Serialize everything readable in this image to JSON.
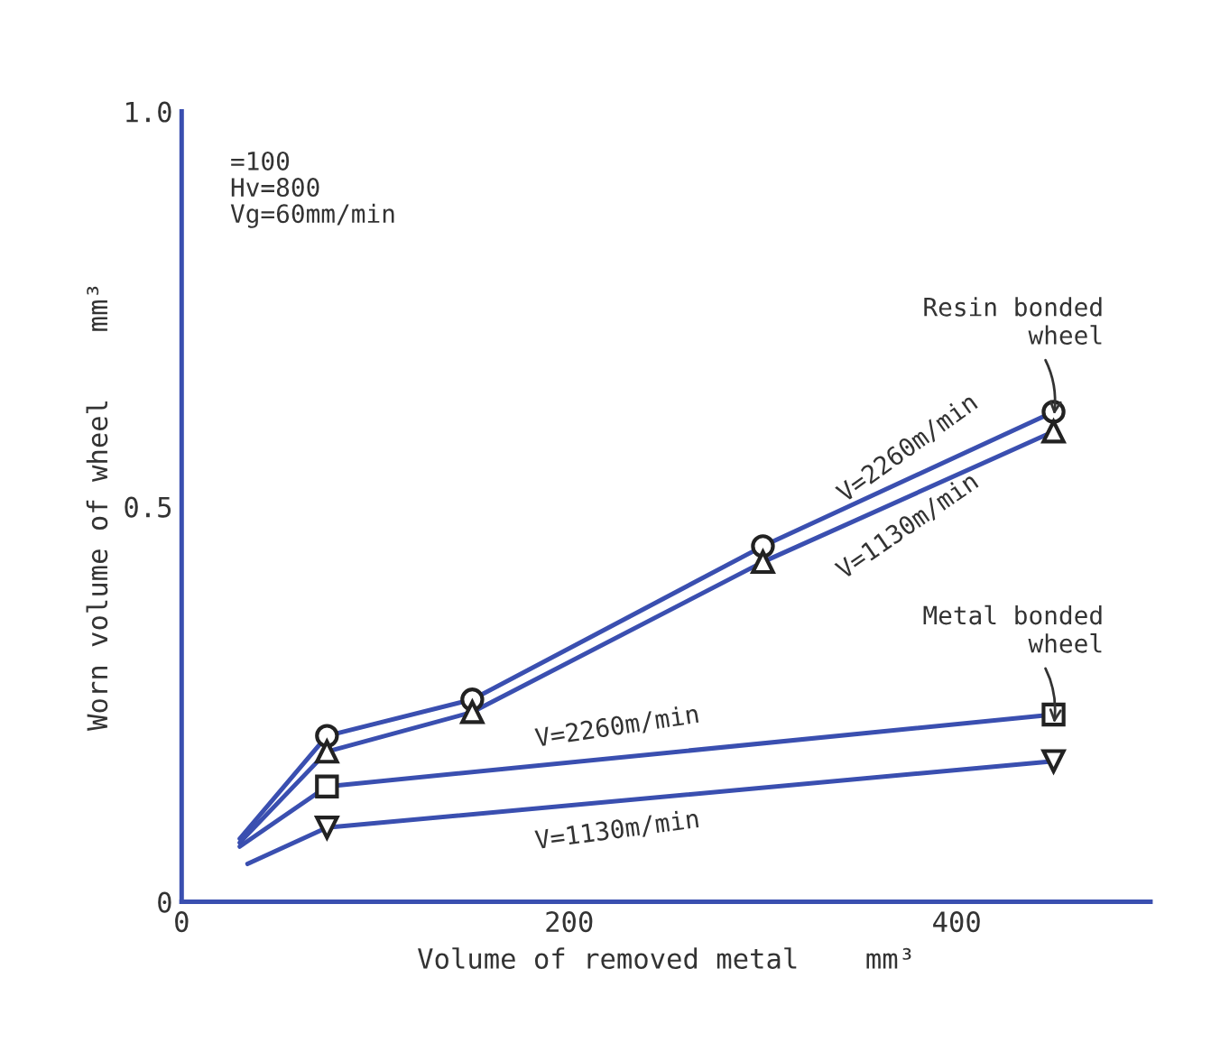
{
  "chart_data": {
    "type": "line",
    "xlabel": "Volume of removed metal    mm³",
    "ylabel": "Worn volume of wheel    mm³",
    "xlim": [
      0,
      500
    ],
    "ylim": [
      0,
      1.0
    ],
    "xticks": [
      0,
      200,
      400
    ],
    "yticks": [
      0,
      0.5,
      {
        "value": 1.0,
        "label": "1.0"
      }
    ],
    "grid": false,
    "legend": false,
    "series": [
      {
        "name": "V=2260m/min",
        "color": "#3a4fb0",
        "x": [
          30,
          75,
          150,
          300,
          450
        ],
        "values": [
          0.08,
          0.21,
          0.256,
          0.45,
          0.62
        ]
      },
      {
        "name": "V=1130m/min",
        "color": "#3a4fb0",
        "x": [
          30,
          75,
          150,
          300,
          450
        ],
        "values": [
          0.075,
          0.19,
          0.24,
          0.43,
          0.595
        ]
      },
      {
        "name": "V=2260m/min",
        "color": "#3a4fb0",
        "x": [
          30,
          75,
          450
        ],
        "values": [
          0.07,
          0.146,
          0.237
        ]
      },
      {
        "name": "V=1130m/min",
        "color": "#3a4fb0",
        "x": [
          34,
          75,
          450
        ],
        "values": [
          0.048,
          0.094,
          0.178
        ]
      },
      {
        "type": "scatter",
        "color": "#222222",
        "marker": "circle",
        "x": [
          75,
          150,
          300,
          450
        ],
        "values": [
          0.21,
          0.256,
          0.45,
          0.62
        ]
      },
      {
        "type": "scatter",
        "color": "#222222",
        "marker": "triangle",
        "x": [
          75,
          150,
          300,
          450
        ],
        "values": [
          0.19,
          0.24,
          0.43,
          0.595
        ]
      },
      {
        "type": "scatter",
        "color": "#222222",
        "marker": "square",
        "x": [
          75,
          450
        ],
        "values": [
          0.146,
          0.237
        ]
      },
      {
        "type": "scatter",
        "color": "#222222",
        "marker": "triangle_down",
        "x": [
          75,
          450
        ],
        "values": [
          0.094,
          0.178
        ]
      }
    ],
    "annotations": [
      "=100\nHv=800\nVg=60mm/min",
      {
        "text": "Resin bonded\nwheel",
        "x": 450,
        "y": 0.61
      },
      {
        "text": "Metal bonded\nwheel",
        "x": 450,
        "y": 0.22
      }
    ]
  }
}
